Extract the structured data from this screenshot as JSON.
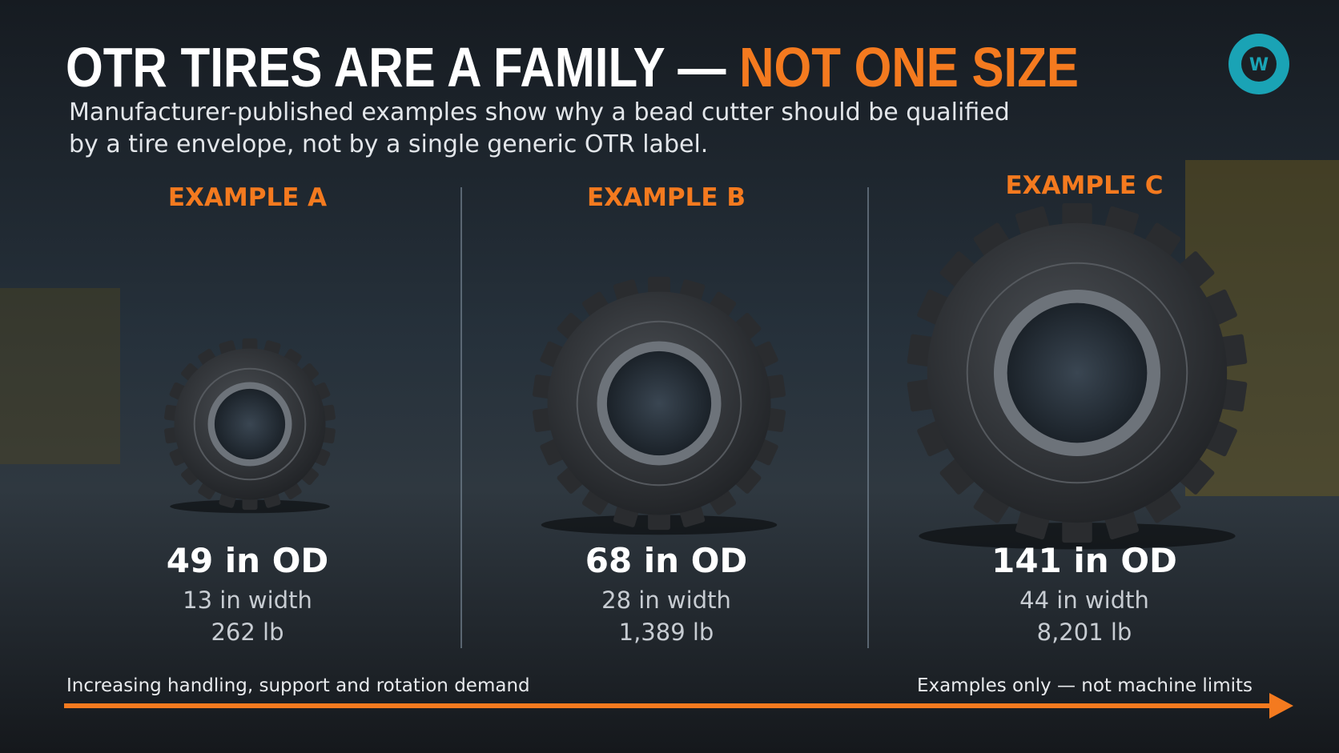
{
  "header": {
    "title_main": "OTR TIRES ARE A FAMILY — ",
    "title_accent": "NOT ONE SIZE",
    "subtitle_lines": [
      "Manufacturer-published examples show why a bead cutter should be qualified",
      "by a tire envelope, not by a single generic OTR label."
    ]
  },
  "examples": [
    {
      "label": "EXAMPLE A",
      "od": "49 in OD",
      "width": "13 in width",
      "weight": "262 lb"
    },
    {
      "label": "EXAMPLE B",
      "od": "68 in OD",
      "width": "28 in width",
      "weight": "1,389 lb"
    },
    {
      "label": "EXAMPLE C",
      "od": "141 in OD",
      "width": "44 in width",
      "weight": "8,201 lb"
    }
  ],
  "footer": {
    "left": "Increasing handling, support and rotation demand",
    "right": "Examples only — not machine limits"
  }
}
